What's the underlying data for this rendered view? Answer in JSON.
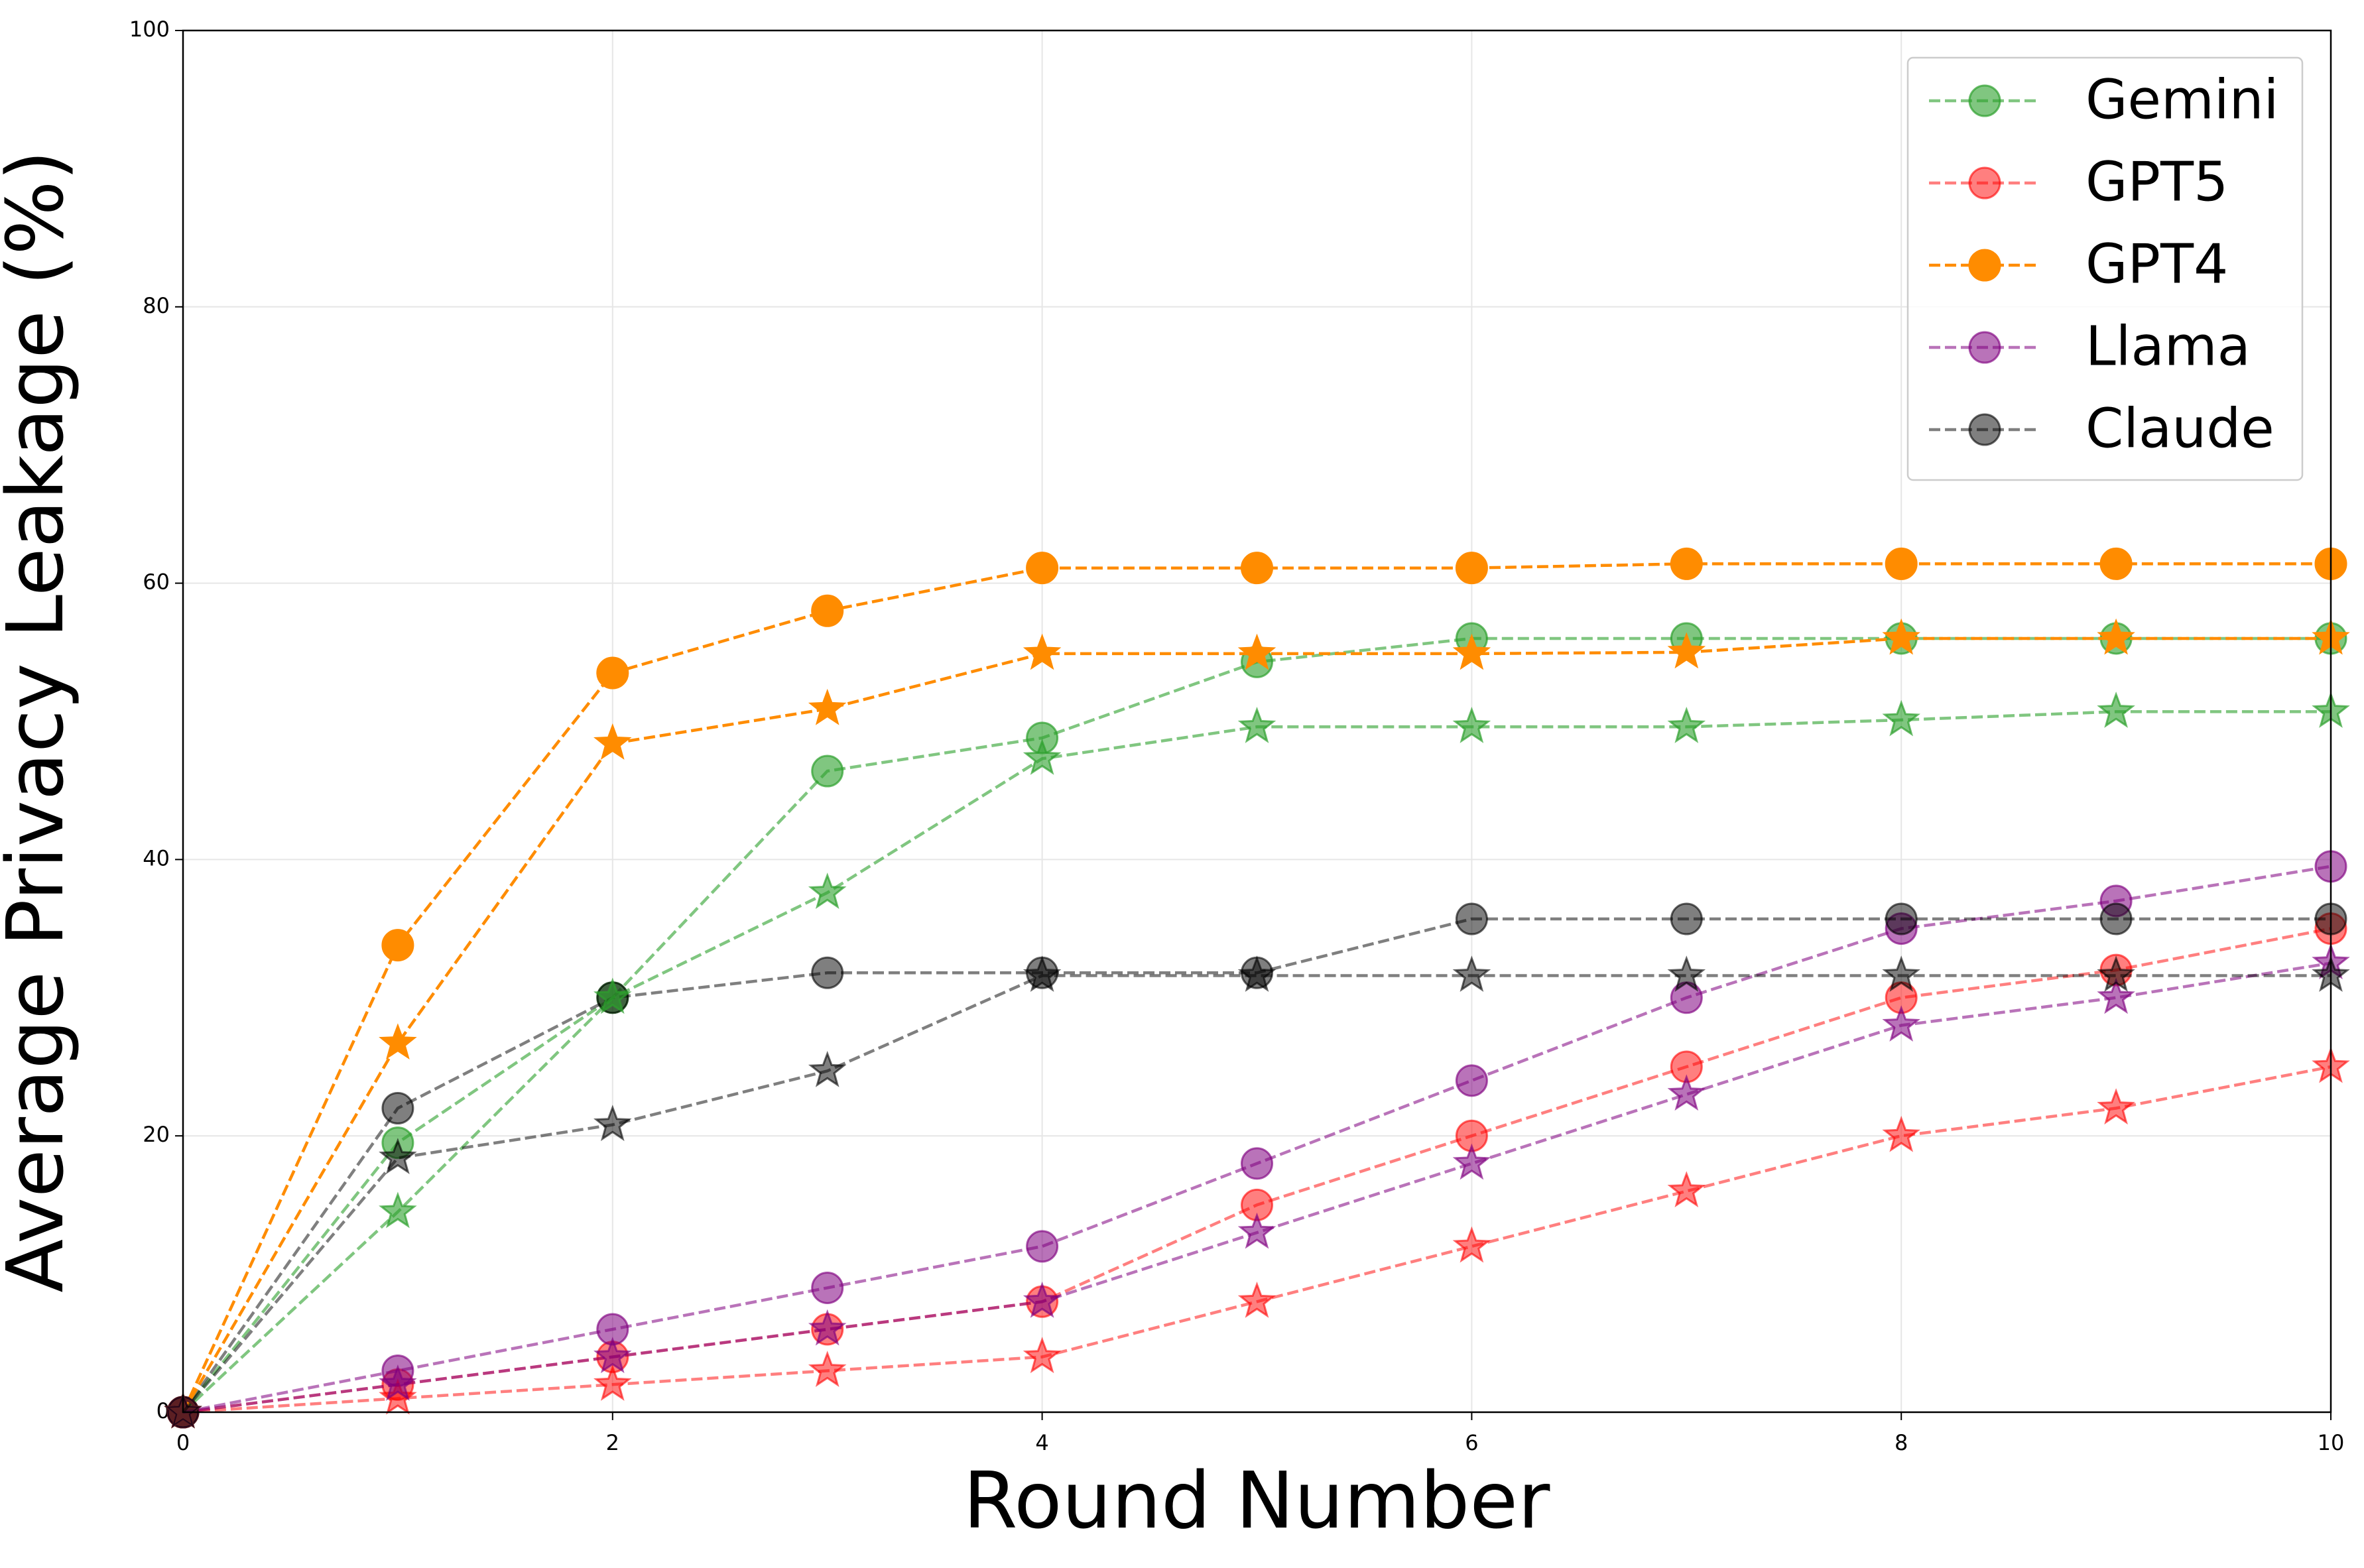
{
  "chart_data": {
    "type": "line",
    "x_label": "Round Number",
    "y_label": "Average Privacy Leakage (%)",
    "x": [
      0,
      1,
      2,
      3,
      4,
      5,
      6,
      7,
      8,
      9,
      10
    ],
    "xlim": [
      0,
      10
    ],
    "xticks": [
      0,
      2,
      4,
      6,
      8,
      10
    ],
    "ylim": [
      0,
      100
    ],
    "yticks": [
      0,
      20,
      40,
      60,
      80,
      100
    ],
    "grid": true,
    "legend": "upper right",
    "series": [
      {
        "name": "Gemini",
        "color": "#2ca02c",
        "alpha": 0.6,
        "marker": "circle",
        "values": [
          0,
          19.5,
          30,
          46.4,
          48.8,
          54.3,
          56,
          56,
          56,
          56,
          56
        ]
      },
      {
        "name": "GPT5",
        "color": "#ff0000",
        "alpha": 0.5,
        "marker": "circle",
        "values": [
          0,
          2,
          4,
          6,
          8,
          15,
          20,
          25,
          30,
          32,
          35
        ]
      },
      {
        "name": "GPT4",
        "color": "#ff8c00",
        "alpha": 1,
        "marker": "circle",
        "values": [
          0,
          33.8,
          53.5,
          58,
          61.1,
          61.1,
          61.1,
          61.4,
          61.4,
          61.4,
          61.4
        ]
      },
      {
        "name": "Llama",
        "color": "#800080",
        "alpha": 0.55,
        "marker": "circle",
        "values": [
          0,
          3,
          6,
          9,
          12,
          18,
          24,
          30,
          35,
          37,
          39.5
        ]
      },
      {
        "name": "Claude",
        "color": "#000000",
        "alpha": 0.5,
        "marker": "circle",
        "values": [
          0,
          22,
          30,
          31.8,
          31.8,
          31.8,
          35.7,
          35.7,
          35.7,
          35.7,
          35.7
        ]
      },
      {
        "color": "#2ca02c",
        "alpha": 0.6,
        "marker": "star",
        "values": [
          0,
          14.5,
          30,
          37.6,
          47.3,
          49.6,
          49.6,
          49.6,
          50.1,
          50.7,
          50.7
        ]
      },
      {
        "color": "#ff0000",
        "alpha": 0.5,
        "marker": "star",
        "values": [
          0,
          1,
          2,
          3,
          4,
          8,
          12,
          16,
          20,
          22,
          25
        ]
      },
      {
        "color": "#ff8c00",
        "alpha": 1,
        "marker": "star",
        "values": [
          0,
          26.7,
          48.4,
          50.9,
          54.9,
          54.9,
          54.9,
          55,
          56,
          56,
          56
        ]
      },
      {
        "color": "#800080",
        "alpha": 0.55,
        "marker": "star",
        "values": [
          0,
          2,
          4,
          6,
          8,
          13,
          18,
          23,
          28,
          30,
          32.5
        ]
      },
      {
        "color": "#000000",
        "alpha": 0.5,
        "marker": "star",
        "values": [
          0,
          18.4,
          20.8,
          24.7,
          31.6,
          31.6,
          31.6,
          31.6,
          31.6,
          31.6,
          31.6
        ]
      }
    ]
  }
}
